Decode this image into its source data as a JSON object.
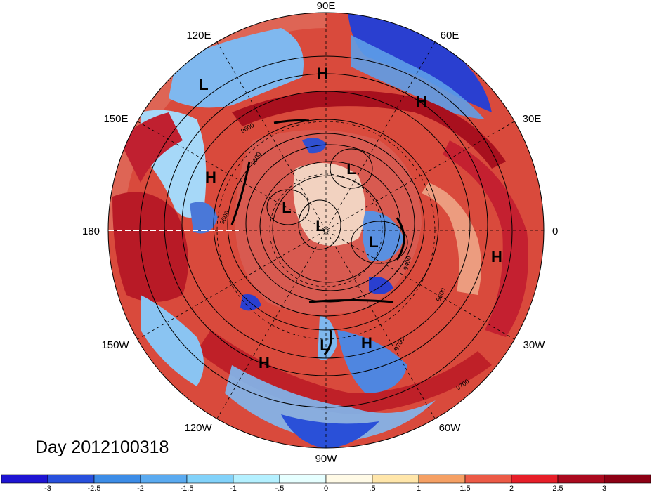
{
  "title": "Day 2012100318",
  "longitude_labels": [
    "90E",
    "60E",
    "30E",
    "0",
    "30W",
    "60W",
    "90W",
    "120W",
    "150W",
    "180",
    "150E",
    "120E"
  ],
  "pressure_systems": [
    {
      "type": "H"
    },
    {
      "type": "H"
    },
    {
      "type": "L"
    },
    {
      "type": "H"
    },
    {
      "type": "L"
    },
    {
      "type": "L"
    },
    {
      "type": "L"
    },
    {
      "type": "L"
    },
    {
      "type": "H"
    },
    {
      "type": "L"
    },
    {
      "type": "H"
    },
    {
      "type": "H"
    }
  ],
  "contour_labels": [
    "9600",
    "9600",
    "9400",
    "9600",
    "9700",
    "9600",
    "9700"
  ],
  "colorbar": {
    "tick_labels": [
      "-3",
      "-2.5",
      "-2",
      "-1.5",
      "-1",
      "-.5",
      "0",
      ".5",
      "1",
      "1.5",
      "2",
      "2.5",
      "3"
    ],
    "colors": [
      "#1e14d2",
      "#2850dc",
      "#3c8ce6",
      "#5aaaf0",
      "#82d2fa",
      "#b4f0ff",
      "#e6ffff",
      "#fffae6",
      "#ffe6aa",
      "#f5a064",
      "#ec5a46",
      "#e61e28",
      "#aa0a1e",
      "#8c0014"
    ]
  }
}
